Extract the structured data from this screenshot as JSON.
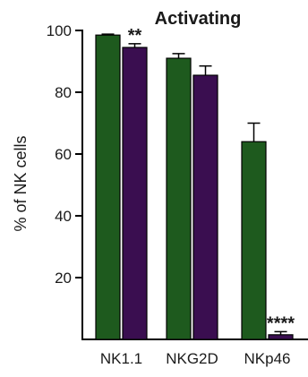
{
  "chart_data": {
    "type": "bar",
    "title": "Activating",
    "xlabel": "",
    "ylabel": "% of NK cells",
    "ylim": [
      0,
      100
    ],
    "yticks": [
      20,
      40,
      60,
      80,
      100
    ],
    "grid": false,
    "legend": "none",
    "categories": [
      "NK1.1",
      "NKG2D",
      "NKp46"
    ],
    "series": [
      {
        "color": "#1e5a1e",
        "values": [
          98.5,
          91,
          64
        ],
        "errors": [
          0.3,
          1.5,
          6
        ]
      },
      {
        "color": "#3a0e50",
        "values": [
          94.5,
          85.5,
          1.5
        ],
        "errors": [
          1.2,
          3,
          1
        ]
      }
    ],
    "annotations": [
      {
        "category": "NK1.1",
        "series": 1,
        "text": "**"
      },
      {
        "category": "NKp46",
        "series": 1,
        "text": "****"
      }
    ]
  }
}
